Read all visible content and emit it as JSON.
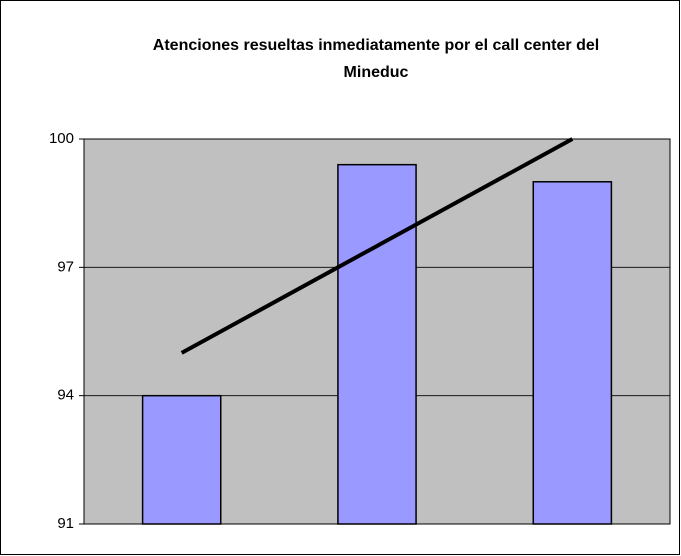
{
  "chart_data": {
    "type": "bar",
    "title": "Atenciones resueltas inmediatamente por el call center del Mineduc",
    "categories": [
      null,
      null,
      null
    ],
    "series": [
      {
        "type": "bar",
        "color": "#9999ff",
        "values": [
          94,
          99.4,
          99.0
        ]
      },
      {
        "type": "line",
        "color": "#000000",
        "values": [
          95,
          97.5,
          100
        ]
      }
    ],
    "ylim": [
      91,
      100
    ],
    "yticks": [
      91,
      94,
      97,
      100
    ],
    "grid": true,
    "plot_background": "#c0c0c0"
  }
}
